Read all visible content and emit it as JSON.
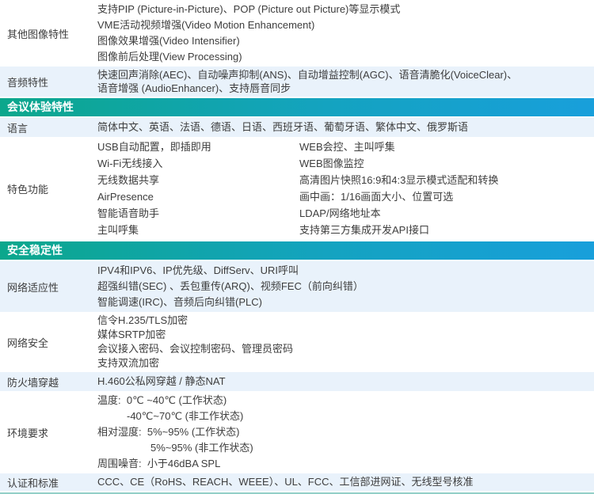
{
  "theme": {
    "header_gradient_start": "#0ba78c",
    "header_gradient_end": "#189fdb",
    "alt_row_bg": "#e9f2fb",
    "text_color": "#3d3d3d",
    "header_text_color": "#ffffff",
    "bottom_rule_color": "#93cfc7"
  },
  "headers": {
    "experience": "会议体验特性",
    "security": "安全稳定性"
  },
  "rows": {
    "other_image": {
      "label": "其他图像特性",
      "lines": [
        "支持PIP (Picture-in-Picture)、POP (Picture out Picture)等显示模式",
        "VME活动视频增强(Video Motion Enhancement)",
        "图像效果增强(Video Intensifier)",
        "图像前后处理(View Processing)"
      ]
    },
    "audio": {
      "label": "音频特性",
      "lines": [
        "快速回声消除(AEC)、自动噪声抑制(ANS)、自动增益控制(AGC)、语音清脆化(VoiceClear)、",
        "语音增强 (AudioEnhancer)、支持唇音同步"
      ]
    },
    "language": {
      "label": "语言",
      "lines": [
        "简体中文、英语、法语、德语、日语、西班牙语、葡萄牙语、繁体中文、俄罗斯语"
      ]
    },
    "features": {
      "label": "特色功能",
      "col_left": [
        "USB自动配置，即插即用",
        "Wi-Fi无线接入",
        "无线数据共享",
        "AirPresence",
        "智能语音助手",
        "主叫呼集"
      ],
      "col_right": [
        "WEB会控、主叫呼集",
        "WEB图像监控",
        "高清图片快照16:9和4:3显示模式适配和转换",
        "画中画：1/16画面大小、位置可选",
        "LDAP/网络地址本",
        "支持第三方集成开发API接口"
      ]
    },
    "network_adapt": {
      "label": "网络适应性",
      "lines": [
        "IPV4和IPV6、IP优先级、DiffServ、URI呼叫",
        "超强纠错(SEC) 、丢包重传(ARQ)、视频FEC（前向纠错）",
        "智能调速(IRC)、音频后向纠错(PLC)"
      ]
    },
    "network_security": {
      "label": "网络安全",
      "lines": [
        "信令H.235/TLS加密",
        "媒体SRTP加密",
        "会议接入密码、会议控制密码、管理员密码",
        "支持双流加密"
      ]
    },
    "firewall": {
      "label": "防火墙穿越",
      "lines": [
        "H.460公私网穿越 / 静态NAT"
      ]
    },
    "environment": {
      "label": "环境要求",
      "lines": [
        "温度:  0℃ ~40℃ (工作状态)",
        "-40℃~70℃ (非工作状态)",
        "相对湿度:  5%~95% (工作状态)",
        "5%~95% (非工作状态)",
        "周围噪音:  小于46dBA SPL"
      ]
    },
    "certification": {
      "label": "认证和标准",
      "lines": [
        "CCC、CE（RoHS、REACH、WEEE）、UL、FCC、工信部进网证、无线型号核准"
      ]
    }
  }
}
